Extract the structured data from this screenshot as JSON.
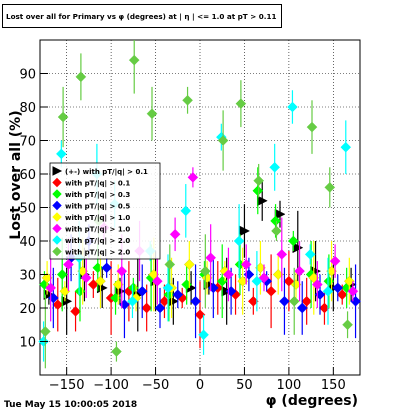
{
  "footer_timestamp": "Tue May 15 10:00:05 2018",
  "chart_data": {
    "type": "scatter",
    "title": "Lost over all for Primary vs φ (degrees) at | η | <= 1.0 at pT > 0.11",
    "xlabel": "φ (degrees)",
    "ylabel": "Lost over all (%)",
    "xlim": [
      -180,
      180
    ],
    "ylim": [
      0,
      100
    ],
    "xticks": [
      -150,
      -100,
      -50,
      0,
      50,
      100,
      150
    ],
    "yticks": [
      10,
      20,
      30,
      40,
      50,
      60,
      70,
      80,
      90
    ],
    "grid": true,
    "legend_position": "left",
    "series": [
      {
        "name": "(+-) with pT/|q| > 0.1",
        "color": "#000000",
        "marker": "triangle-right",
        "x": [
          -170,
          -150,
          -130,
          -110,
          -90,
          -70,
          -50,
          -30,
          -10,
          10,
          30,
          50,
          70,
          90,
          110,
          130,
          150,
          170
        ],
        "y": [
          24,
          22,
          30,
          26,
          25,
          24,
          28,
          22,
          26,
          27,
          25,
          43,
          52,
          48,
          38,
          31,
          26,
          27
        ]
      },
      {
        "name": "with pT/|q| > 0.1",
        "color": "#ff0000",
        "marker": "diamond",
        "x": [
          -160,
          -140,
          -120,
          -100,
          -80,
          -60,
          -40,
          -20,
          0,
          20,
          40,
          60,
          80,
          100,
          120,
          140,
          160
        ],
        "y": [
          21,
          19,
          27,
          23,
          25,
          20,
          22,
          23,
          18,
          26,
          24,
          22,
          25,
          28,
          22,
          20,
          24
        ]
      },
      {
        "name": "with pT/|q| > 0.3",
        "color": "#00ff00",
        "marker": "diamond",
        "x": [
          -175,
          -155,
          -135,
          -115,
          -95,
          -75,
          -55,
          -35,
          -15,
          5,
          25,
          45,
          65,
          85,
          105,
          125,
          145,
          165
        ],
        "y": [
          27,
          30,
          25,
          32,
          23,
          26,
          29,
          24,
          27,
          30,
          28,
          33,
          55,
          46,
          40,
          30,
          28,
          26
        ]
      },
      {
        "name": "with pT/|q| > 0.5",
        "color": "#0000ff",
        "marker": "diamond",
        "x": [
          -165,
          -145,
          -125,
          -105,
          -85,
          -65,
          -45,
          -25,
          -5,
          15,
          35,
          55,
          75,
          95,
          115,
          135,
          155,
          175
        ],
        "y": [
          23,
          35,
          40,
          32,
          21,
          25,
          20,
          24,
          22,
          26,
          25,
          30,
          28,
          22,
          20,
          24,
          26,
          22
        ]
      },
      {
        "name": "with pT/|q| > 1.0",
        "color": "#ffff00",
        "marker": "diamond",
        "x": [
          -172,
          -152,
          -132,
          -112,
          -92,
          -72,
          -52,
          -32,
          -12,
          8,
          28,
          48,
          68,
          88,
          108,
          128,
          148,
          168
        ],
        "y": [
          29,
          25,
          31,
          28,
          27,
          23,
          30,
          26,
          33,
          29,
          31,
          28,
          32,
          30,
          27,
          29,
          31,
          28
        ]
      },
      {
        "name": "with pT/|q| > 1.0",
        "color": "#ff00ff",
        "marker": "diamond",
        "x": [
          -168,
          -148,
          -128,
          -108,
          -88,
          -68,
          -48,
          -28,
          -8,
          12,
          32,
          52,
          72,
          92,
          112,
          132,
          152,
          172
        ],
        "y": [
          26,
          33,
          29,
          44,
          31,
          37,
          28,
          42,
          59,
          35,
          30,
          33,
          29,
          36,
          31,
          27,
          34,
          25
        ]
      },
      {
        "name": "with pT/|q| > 2.0",
        "color": "#00ffff",
        "marker": "diamond",
        "x": [
          -176,
          -156,
          -136,
          -116,
          -96,
          -76,
          -56,
          -36,
          -16,
          4,
          24,
          44,
          64,
          84,
          104,
          124,
          144,
          164
        ],
        "y": [
          10,
          66,
          35,
          60,
          51,
          22,
          37,
          26,
          49,
          12,
          71,
          40,
          28,
          62,
          80,
          36,
          25,
          68
        ]
      },
      {
        "name": "with pT/|q| > 2.0",
        "color": "#66cc44",
        "marker": "diamond",
        "x": [
          -174,
          -154,
          -134,
          -114,
          -94,
          -74,
          -54,
          -34,
          -14,
          6,
          26,
          46,
          66,
          86,
          106,
          126,
          146,
          166
        ],
        "y": [
          13,
          77,
          89,
          46,
          7,
          94,
          78,
          33,
          82,
          31,
          70,
          81,
          58,
          43,
          22,
          74,
          56,
          15
        ]
      }
    ]
  }
}
